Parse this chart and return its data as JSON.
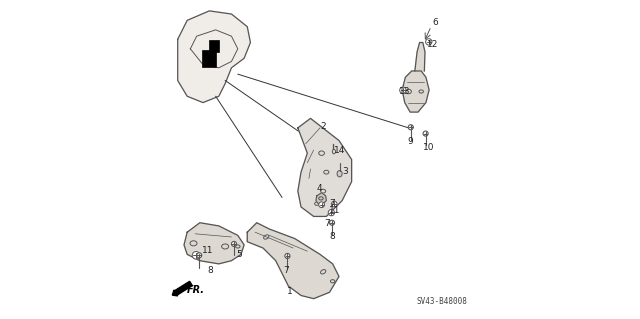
{
  "bg_color": "#ffffff",
  "fig_width": 6.4,
  "fig_height": 3.19,
  "dpi": 100,
  "diagram_code": "SV43-B48008",
  "fr_label": "FR.",
  "text_color": "#222222",
  "line_color": "#333333",
  "sketch_color": "#555555"
}
